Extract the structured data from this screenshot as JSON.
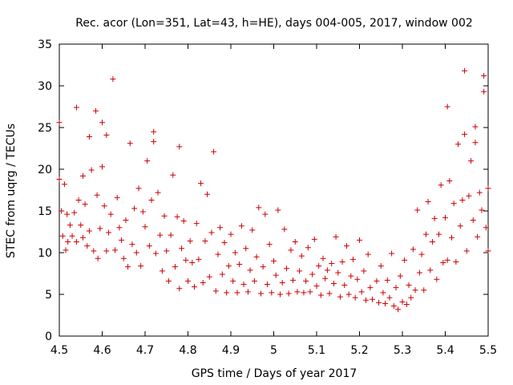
{
  "chart_data": {
    "type": "scatter",
    "title": "Rec. acor (Lon=351, Lat=43, h=HE), days 004-005, 2017, window 002",
    "xlabel": "GPS time / Days of year 2017",
    "ylabel": "STEC from uqrg / TECUs",
    "xlim": [
      4.5,
      5.5
    ],
    "ylim": [
      0,
      35
    ],
    "xticks": [
      4.5,
      4.6,
      4.7,
      4.8,
      4.9,
      5.0,
      5.1,
      5.2,
      5.3,
      5.4,
      5.5
    ],
    "xtick_labels": [
      "4.5",
      "4.6",
      "4.7",
      "4.8",
      "4.9",
      "5",
      "5.1",
      "5.2",
      "5.3",
      "5.4",
      "5.5"
    ],
    "yticks": [
      0,
      5,
      10,
      15,
      20,
      25,
      30,
      35
    ],
    "ytick_labels": [
      "0",
      "5",
      "10",
      "15",
      "20",
      "25",
      "30",
      "35"
    ],
    "grid": false,
    "marker": "+",
    "color": "#cc0000",
    "series": [
      {
        "name": "STEC",
        "points": [
          [
            4.5,
            25.6
          ],
          [
            4.5,
            18.8
          ],
          [
            4.505,
            15.0
          ],
          [
            4.508,
            12.0
          ],
          [
            4.512,
            18.2
          ],
          [
            4.515,
            10.3
          ],
          [
            4.518,
            14.6
          ],
          [
            4.52,
            11.3
          ],
          [
            4.525,
            13.3
          ],
          [
            4.53,
            12.0
          ],
          [
            4.535,
            14.8
          ],
          [
            4.54,
            27.4
          ],
          [
            4.54,
            11.3
          ],
          [
            4.545,
            16.3
          ],
          [
            4.55,
            13.3
          ],
          [
            4.555,
            19.2
          ],
          [
            4.555,
            11.8
          ],
          [
            4.56,
            15.8
          ],
          [
            4.565,
            10.8
          ],
          [
            4.57,
            23.9
          ],
          [
            4.57,
            12.6
          ],
          [
            4.575,
            19.9
          ],
          [
            4.58,
            10.2
          ],
          [
            4.585,
            27.0
          ],
          [
            4.588,
            16.9
          ],
          [
            4.59,
            9.3
          ],
          [
            4.595,
            12.9
          ],
          [
            4.6,
            25.6
          ],
          [
            4.6,
            20.3
          ],
          [
            4.605,
            15.6
          ],
          [
            4.61,
            10.2
          ],
          [
            4.61,
            24.1
          ],
          [
            4.615,
            12.4
          ],
          [
            4.62,
            14.6
          ],
          [
            4.625,
            30.8
          ],
          [
            4.63,
            10.3
          ],
          [
            4.635,
            16.6
          ],
          [
            4.64,
            13.0
          ],
          [
            4.645,
            11.5
          ],
          [
            4.65,
            9.3
          ],
          [
            4.655,
            13.9
          ],
          [
            4.66,
            8.3
          ],
          [
            4.665,
            23.1
          ],
          [
            4.67,
            11.0
          ],
          [
            4.675,
            15.3
          ],
          [
            4.68,
            10.0
          ],
          [
            4.685,
            17.7
          ],
          [
            4.69,
            8.4
          ],
          [
            4.695,
            14.9
          ],
          [
            4.7,
            13.1
          ],
          [
            4.705,
            21.0
          ],
          [
            4.71,
            10.8
          ],
          [
            4.715,
            16.3
          ],
          [
            4.72,
            24.5
          ],
          [
            4.72,
            23.3
          ],
          [
            4.725,
            9.9
          ],
          [
            4.73,
            17.2
          ],
          [
            4.735,
            12.1
          ],
          [
            4.74,
            7.8
          ],
          [
            4.745,
            14.4
          ],
          [
            4.75,
            10.2
          ],
          [
            4.755,
            6.6
          ],
          [
            4.76,
            12.1
          ],
          [
            4.765,
            19.3
          ],
          [
            4.77,
            8.3
          ],
          [
            4.775,
            14.3
          ],
          [
            4.78,
            22.7
          ],
          [
            4.78,
            5.7
          ],
          [
            4.785,
            10.5
          ],
          [
            4.79,
            13.8
          ],
          [
            4.795,
            9.1
          ],
          [
            4.8,
            6.6
          ],
          [
            4.805,
            11.4
          ],
          [
            4.81,
            8.8
          ],
          [
            4.815,
            5.9
          ],
          [
            4.82,
            13.5
          ],
          [
            4.825,
            9.2
          ],
          [
            4.83,
            18.3
          ],
          [
            4.835,
            6.4
          ],
          [
            4.84,
            11.4
          ],
          [
            4.845,
            17.0
          ],
          [
            4.85,
            7.1
          ],
          [
            4.855,
            12.4
          ],
          [
            4.86,
            22.1
          ],
          [
            4.865,
            5.4
          ],
          [
            4.87,
            9.8
          ],
          [
            4.875,
            13.0
          ],
          [
            4.88,
            7.4
          ],
          [
            4.885,
            11.2
          ],
          [
            4.89,
            5.2
          ],
          [
            4.895,
            8.4
          ],
          [
            4.9,
            12.2
          ],
          [
            4.905,
            6.6
          ],
          [
            4.91,
            10.0
          ],
          [
            4.915,
            5.2
          ],
          [
            4.92,
            8.6
          ],
          [
            4.925,
            13.2
          ],
          [
            4.93,
            6.2
          ],
          [
            4.935,
            10.5
          ],
          [
            4.94,
            5.3
          ],
          [
            4.945,
            7.9
          ],
          [
            4.95,
            12.7
          ],
          [
            4.955,
            6.6
          ],
          [
            4.96,
            9.5
          ],
          [
            4.965,
            15.4
          ],
          [
            4.97,
            5.1
          ],
          [
            4.975,
            8.3
          ],
          [
            4.98,
            14.6
          ],
          [
            4.985,
            6.2
          ],
          [
            4.99,
            11.0
          ],
          [
            4.995,
            5.2
          ],
          [
            5.0,
            9.0
          ],
          [
            5.005,
            7.3
          ],
          [
            5.01,
            15.1
          ],
          [
            5.015,
            5.0
          ],
          [
            5.02,
            6.4
          ],
          [
            5.025,
            12.8
          ],
          [
            5.03,
            8.1
          ],
          [
            5.035,
            5.1
          ],
          [
            5.04,
            10.3
          ],
          [
            5.045,
            6.7
          ],
          [
            5.05,
            11.3
          ],
          [
            5.055,
            5.3
          ],
          [
            5.06,
            7.8
          ],
          [
            5.065,
            9.6
          ],
          [
            5.07,
            5.2
          ],
          [
            5.075,
            6.6
          ],
          [
            5.08,
            10.6
          ],
          [
            5.085,
            5.3
          ],
          [
            5.09,
            7.4
          ],
          [
            5.095,
            11.6
          ],
          [
            5.1,
            6.0
          ],
          [
            5.105,
            8.4
          ],
          [
            5.11,
            4.9
          ],
          [
            5.115,
            9.3
          ],
          [
            5.12,
            6.9
          ],
          [
            5.125,
            7.9
          ],
          [
            5.13,
            5.1
          ],
          [
            5.135,
            8.7
          ],
          [
            5.14,
            6.3
          ],
          [
            5.145,
            11.9
          ],
          [
            5.15,
            7.6
          ],
          [
            5.155,
            4.7
          ],
          [
            5.16,
            8.9
          ],
          [
            5.165,
            6.1
          ],
          [
            5.17,
            10.8
          ],
          [
            5.175,
            5.0
          ],
          [
            5.18,
            7.2
          ],
          [
            5.185,
            9.2
          ],
          [
            5.19,
            4.6
          ],
          [
            5.195,
            6.8
          ],
          [
            5.2,
            11.5
          ],
          [
            5.205,
            5.3
          ],
          [
            5.21,
            7.8
          ],
          [
            5.215,
            4.3
          ],
          [
            5.22,
            9.8
          ],
          [
            5.225,
            5.8
          ],
          [
            5.23,
            4.4
          ],
          [
            5.24,
            6.6
          ],
          [
            5.245,
            4.0
          ],
          [
            5.25,
            8.4
          ],
          [
            5.255,
            5.2
          ],
          [
            5.26,
            3.9
          ],
          [
            5.265,
            6.7
          ],
          [
            5.27,
            4.6
          ],
          [
            5.275,
            9.9
          ],
          [
            5.28,
            3.6
          ],
          [
            5.285,
            5.8
          ],
          [
            5.29,
            3.2
          ],
          [
            5.295,
            7.2
          ],
          [
            5.3,
            4.1
          ],
          [
            5.305,
            9.1
          ],
          [
            5.31,
            3.8
          ],
          [
            5.315,
            6.1
          ],
          [
            5.32,
            4.6
          ],
          [
            5.325,
            10.4
          ],
          [
            5.33,
            5.5
          ],
          [
            5.335,
            15.1
          ],
          [
            5.34,
            7.6
          ],
          [
            5.345,
            9.8
          ],
          [
            5.35,
            5.5
          ],
          [
            5.355,
            12.2
          ],
          [
            5.36,
            16.1
          ],
          [
            5.365,
            7.9
          ],
          [
            5.37,
            11.3
          ],
          [
            5.375,
            14.1
          ],
          [
            5.38,
            6.8
          ],
          [
            5.385,
            12.2
          ],
          [
            5.39,
            18.1
          ],
          [
            5.395,
            8.8
          ],
          [
            5.4,
            14.2
          ],
          [
            5.405,
            27.5
          ],
          [
            5.405,
            9.1
          ],
          [
            5.41,
            18.6
          ],
          [
            5.415,
            11.8
          ],
          [
            5.42,
            15.9
          ],
          [
            5.425,
            8.9
          ],
          [
            5.43,
            23.0
          ],
          [
            5.435,
            13.2
          ],
          [
            5.44,
            16.3
          ],
          [
            5.445,
            31.8
          ],
          [
            5.445,
            24.2
          ],
          [
            5.45,
            10.2
          ],
          [
            5.455,
            16.8
          ],
          [
            5.46,
            21.0
          ],
          [
            5.465,
            13.9
          ],
          [
            5.47,
            25.1
          ],
          [
            5.47,
            23.2
          ],
          [
            5.475,
            11.9
          ],
          [
            5.48,
            17.2
          ],
          [
            5.485,
            15.1
          ],
          [
            5.49,
            31.2
          ],
          [
            5.49,
            29.3
          ],
          [
            5.495,
            13.0
          ],
          [
            5.5,
            17.7
          ],
          [
            5.5,
            10.2
          ]
        ]
      }
    ]
  }
}
